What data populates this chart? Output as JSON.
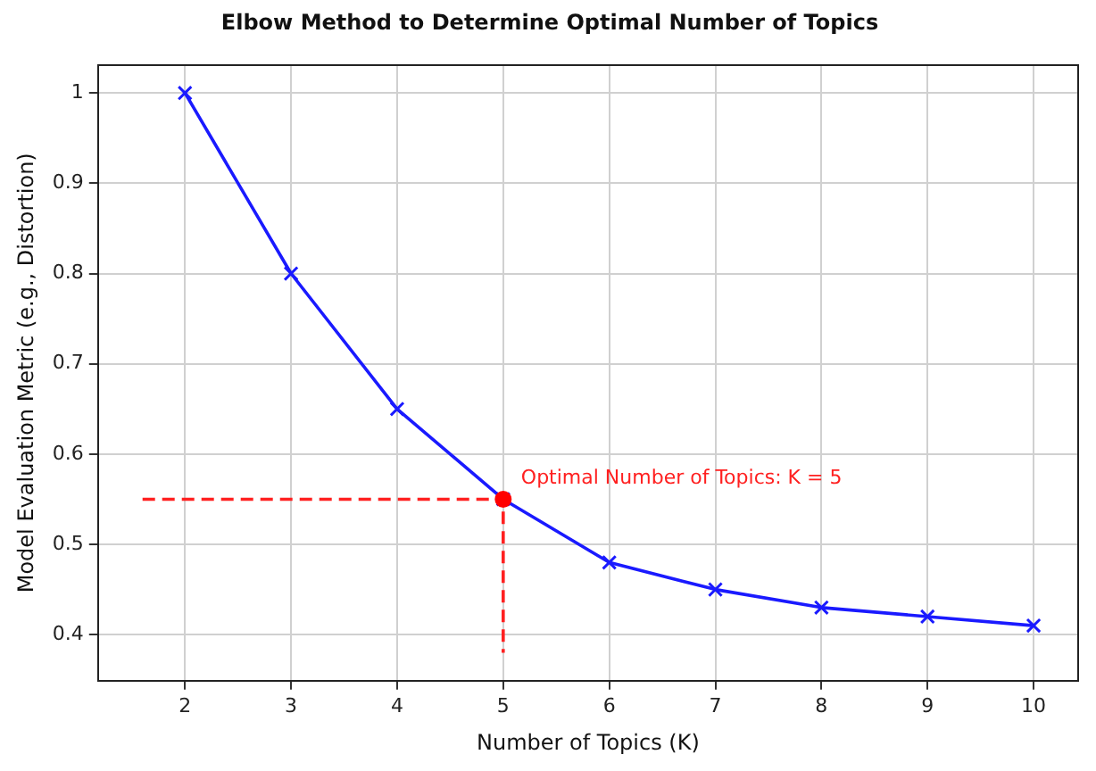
{
  "chart_data": {
    "type": "line",
    "title": "Elbow Method to Determine Optimal Number of Topics",
    "xlabel": "Number of Topics (K)",
    "ylabel": "Model Evaluation Metric (e.g., Distortion)",
    "series": [
      {
        "color": "#1a1aff",
        "marker": "cross",
        "line_style": "solid",
        "x": [
          2,
          3,
          4,
          5,
          6,
          7,
          8,
          9,
          10
        ],
        "values": [
          1.0,
          0.8,
          0.65,
          0.55,
          0.48,
          0.45,
          0.43,
          0.42,
          0.41
        ]
      },
      {
        "color": "#ff2020",
        "marker": "none",
        "line_style": "dashed",
        "x": [
          1.6,
          5,
          5
        ],
        "values": [
          0.55,
          0.55,
          0.38
        ]
      },
      {
        "type": "scatter",
        "color": "#ff0000",
        "marker": "circle",
        "x": [
          5
        ],
        "values": [
          0.55
        ]
      }
    ],
    "annotations": [
      {
        "text": "Optimal Number of Topics: K = 5",
        "x": 5,
        "y": 0.55
      }
    ],
    "xlim": [
      1.18,
      10.42
    ],
    "xticks": [
      2,
      3,
      4,
      5,
      6,
      7,
      8,
      9,
      10
    ],
    "ylim": [
      0.349,
      1.031
    ],
    "yticks": [
      0.4,
      0.5,
      0.6,
      0.7,
      0.8,
      0.9,
      1.0
    ],
    "grid": true,
    "legend": false
  }
}
